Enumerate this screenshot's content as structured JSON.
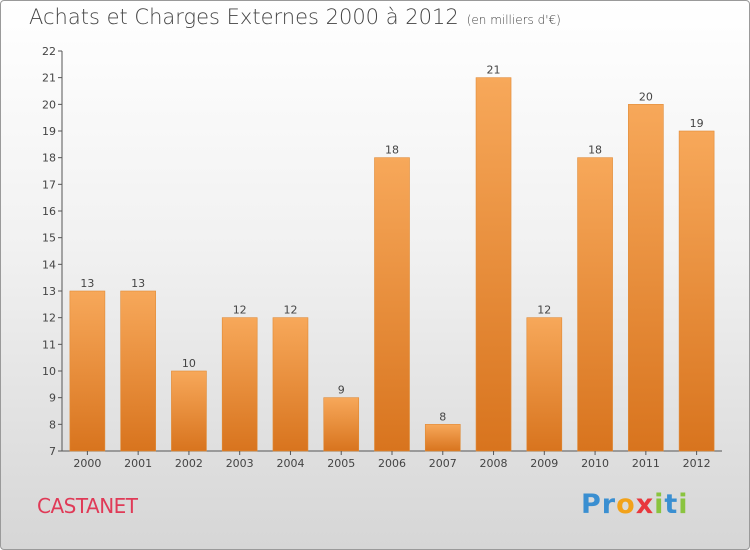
{
  "header": {
    "title": "Achats et Charges Externes 2000 à 2012",
    "unit": "(en milliers d'€)"
  },
  "commune": "CASTANET",
  "logo": {
    "letters": [
      "P",
      "r",
      "o",
      "x",
      "i",
      "t",
      "i"
    ],
    "colors": [
      "#3a8fd1",
      "#3a8fd1",
      "#f2a21a",
      "#e8383d",
      "#8ac43f",
      "#3a8fd1",
      "#8ac43f"
    ]
  },
  "colors": {
    "bar_top": "#f7a85a",
    "bar_bottom": "#d8741e",
    "bar_edge": "#e08a35"
  },
  "chart_data": {
    "type": "bar",
    "categories": [
      "2000",
      "2001",
      "2002",
      "2003",
      "2004",
      "2005",
      "2006",
      "2007",
      "2008",
      "2009",
      "2010",
      "2011",
      "2012"
    ],
    "values": [
      13,
      13,
      10,
      12,
      12,
      9,
      18,
      8,
      21,
      12,
      18,
      20,
      19
    ],
    "title": "Achats et Charges Externes 2000 à 2012",
    "ylim": [
      7,
      22
    ],
    "yticks": [
      7,
      8,
      9,
      10,
      11,
      12,
      13,
      14,
      15,
      16,
      17,
      18,
      19,
      20,
      21,
      22
    ],
    "grid": false,
    "data_labels": true
  }
}
